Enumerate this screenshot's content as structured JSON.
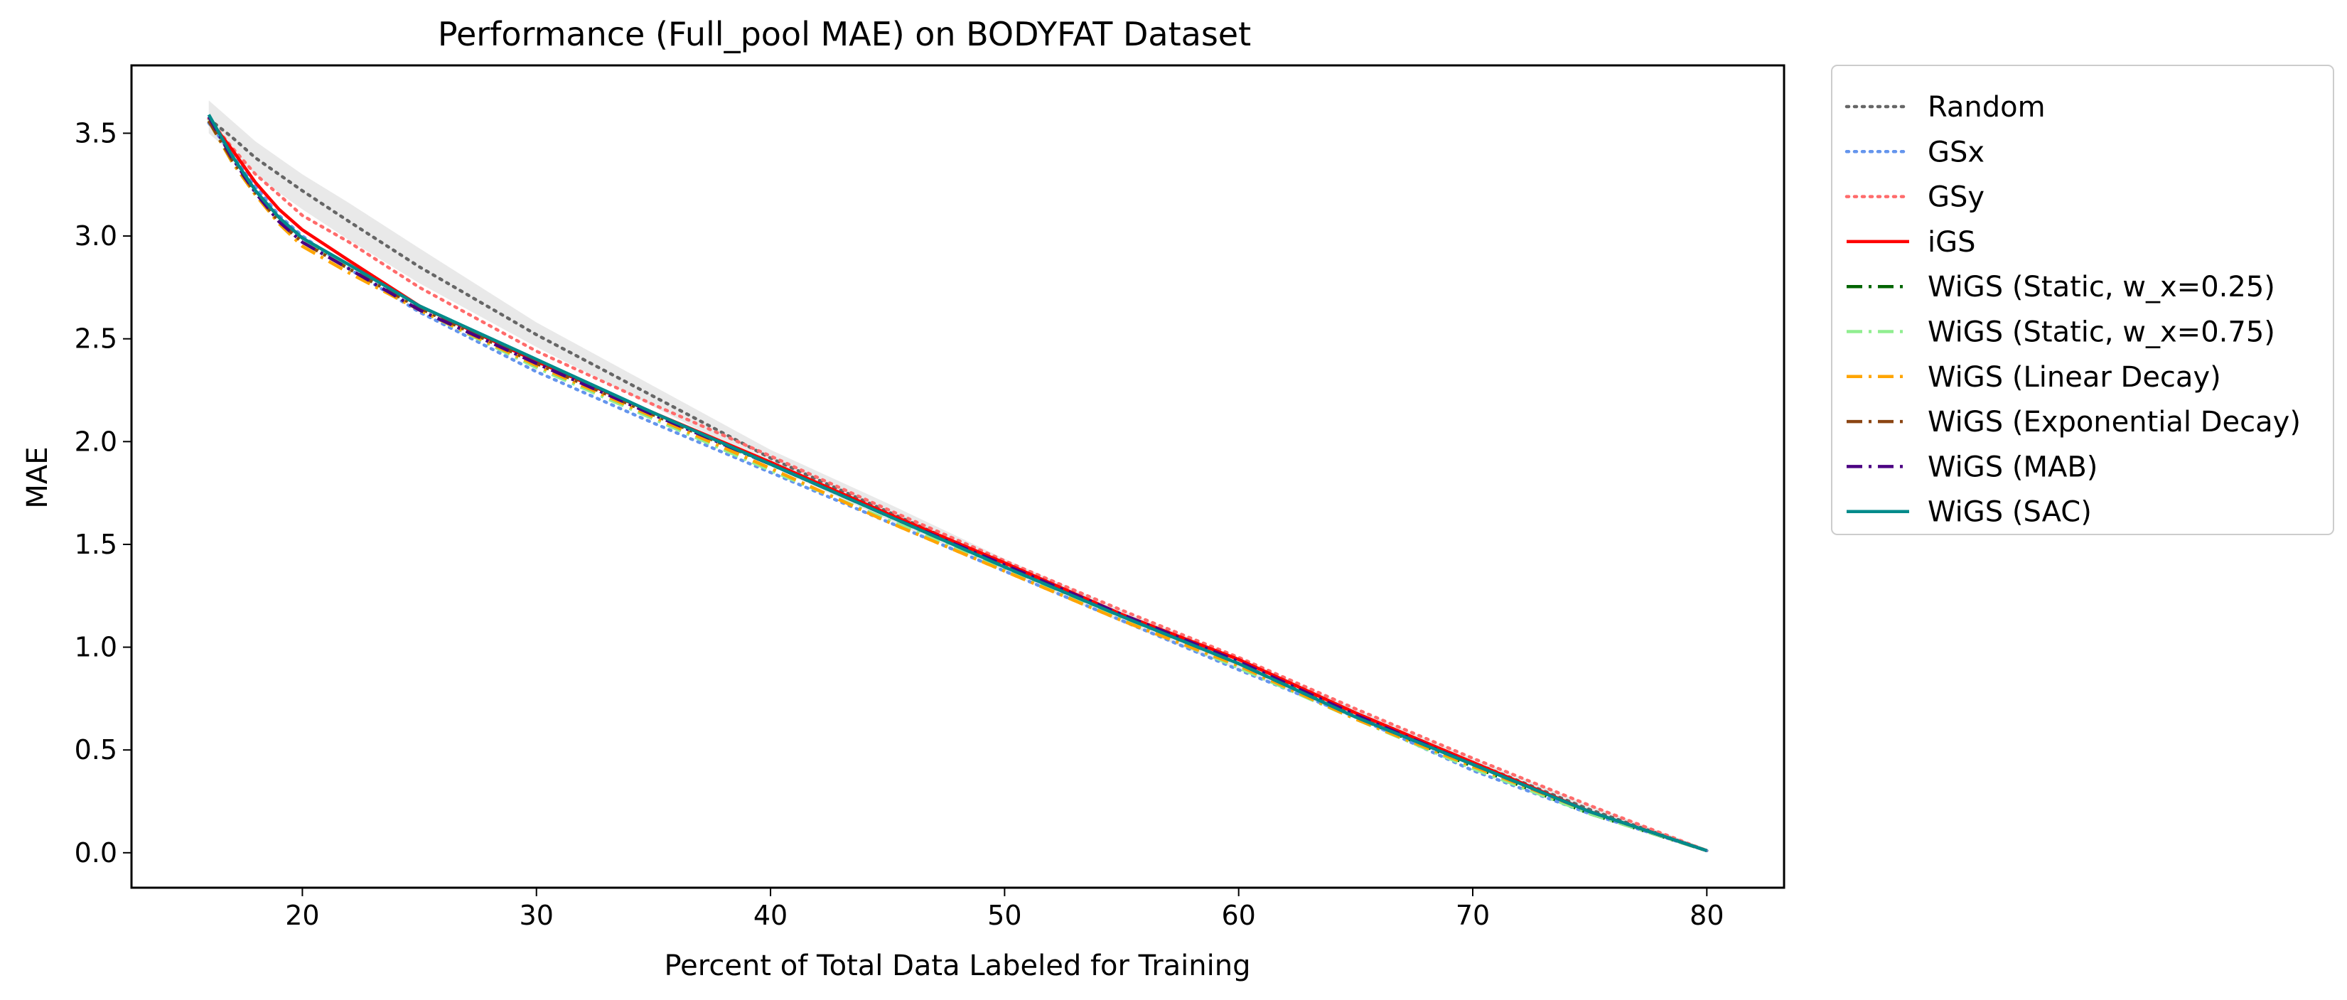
{
  "chart_data": {
    "type": "line",
    "title": "Performance (Full_pool MAE) on BODYFAT Dataset",
    "xlabel": "Percent of Total Data Labeled for Training",
    "ylabel": "MAE",
    "xlim": [
      12.7,
      83.3
    ],
    "ylim": [
      -0.17,
      3.83
    ],
    "xticks": [
      20,
      30,
      40,
      50,
      60,
      70,
      80
    ],
    "yticks": [
      0.0,
      0.5,
      1.0,
      1.5,
      2.0,
      2.5,
      3.0,
      3.5
    ],
    "xtick_labels": [
      "20",
      "30",
      "40",
      "50",
      "60",
      "70",
      "80"
    ],
    "ytick_labels": [
      "0.0",
      "0.5",
      "1.0",
      "1.5",
      "2.0",
      "2.5",
      "3.0",
      "3.5"
    ],
    "grid": false,
    "legend_position": "outside right, top",
    "x": [
      16,
      17,
      18,
      19,
      20,
      22,
      25,
      30,
      35,
      40,
      45,
      50,
      55,
      60,
      65,
      70,
      75,
      80
    ],
    "series": [
      {
        "name": "Random",
        "color": "#666666",
        "style": "dotted",
        "values": [
          3.57,
          3.48,
          3.38,
          3.3,
          3.22,
          3.07,
          2.85,
          2.52,
          2.22,
          1.92,
          1.66,
          1.4,
          1.15,
          0.92,
          0.67,
          0.44,
          0.21,
          0.01
        ],
        "band_lower": [
          3.5,
          3.4,
          3.3,
          3.21,
          3.13,
          2.98,
          2.77,
          2.46,
          2.17,
          1.88,
          1.62,
          1.37,
          1.12,
          0.89,
          0.65,
          0.42,
          0.2,
          0.01
        ],
        "band_upper": [
          3.66,
          3.56,
          3.46,
          3.38,
          3.3,
          3.16,
          2.94,
          2.58,
          2.27,
          1.96,
          1.7,
          1.43,
          1.18,
          0.95,
          0.7,
          0.46,
          0.23,
          0.02
        ]
      },
      {
        "name": "GSx",
        "color": "#6495ed",
        "style": "dotted",
        "values": [
          3.55,
          3.4,
          3.24,
          3.1,
          3.0,
          2.84,
          2.63,
          2.34,
          2.09,
          1.85,
          1.61,
          1.37,
          1.13,
          0.89,
          0.66,
          0.4,
          0.19,
          0.01
        ]
      },
      {
        "name": "GSy",
        "color": "#ff6b6b",
        "style": "dotted",
        "values": [
          3.57,
          3.43,
          3.3,
          3.2,
          3.1,
          2.97,
          2.75,
          2.44,
          2.18,
          1.93,
          1.67,
          1.42,
          1.18,
          0.95,
          0.7,
          0.46,
          0.23,
          0.01
        ]
      },
      {
        "name": "iGS",
        "color": "#ff0000",
        "style": "solid",
        "values": [
          3.57,
          3.42,
          3.26,
          3.13,
          3.03,
          2.88,
          2.66,
          2.39,
          2.14,
          1.9,
          1.65,
          1.41,
          1.16,
          0.94,
          0.68,
          0.44,
          0.2,
          0.01
        ]
      },
      {
        "name": "WiGS (Static, w_x=0.25)",
        "color": "#006400",
        "style": "dashdot",
        "values": [
          3.56,
          3.36,
          3.2,
          3.07,
          2.98,
          2.84,
          2.65,
          2.38,
          2.13,
          1.89,
          1.64,
          1.39,
          1.15,
          0.92,
          0.66,
          0.42,
          0.19,
          0.01
        ]
      },
      {
        "name": "WiGS (Static, w_x=0.75)",
        "color": "#90ee90",
        "style": "dashdot",
        "values": [
          3.57,
          3.38,
          3.22,
          3.08,
          2.98,
          2.84,
          2.64,
          2.36,
          2.11,
          1.86,
          1.62,
          1.38,
          1.14,
          0.9,
          0.65,
          0.41,
          0.19,
          0.01
        ]
      },
      {
        "name": "WiGS (Linear Decay)",
        "color": "#ffa500",
        "style": "dashdot",
        "values": [
          3.56,
          3.36,
          3.2,
          3.06,
          2.95,
          2.82,
          2.64,
          2.37,
          2.12,
          1.87,
          1.61,
          1.37,
          1.13,
          0.91,
          0.65,
          0.42,
          0.2,
          0.01
        ]
      },
      {
        "name": "WiGS (Exponential Decay)",
        "color": "#8b4513",
        "style": "dashdot",
        "values": [
          3.56,
          3.37,
          3.21,
          3.07,
          2.97,
          2.84,
          2.65,
          2.38,
          2.13,
          1.89,
          1.64,
          1.39,
          1.15,
          0.92,
          0.66,
          0.43,
          0.2,
          0.01
        ]
      },
      {
        "name": "WiGS (MAB)",
        "color": "#4b0082",
        "style": "dashdot",
        "values": [
          3.58,
          3.38,
          3.21,
          3.07,
          2.97,
          2.84,
          2.64,
          2.38,
          2.13,
          1.89,
          1.64,
          1.4,
          1.16,
          0.93,
          0.67,
          0.43,
          0.2,
          0.01
        ]
      },
      {
        "name": "WiGS (SAC)",
        "color": "#008b8b",
        "style": "solid",
        "values": [
          3.59,
          3.39,
          3.22,
          3.09,
          2.99,
          2.86,
          2.66,
          2.4,
          2.14,
          1.89,
          1.64,
          1.39,
          1.15,
          0.92,
          0.66,
          0.43,
          0.2,
          0.01
        ]
      }
    ]
  }
}
